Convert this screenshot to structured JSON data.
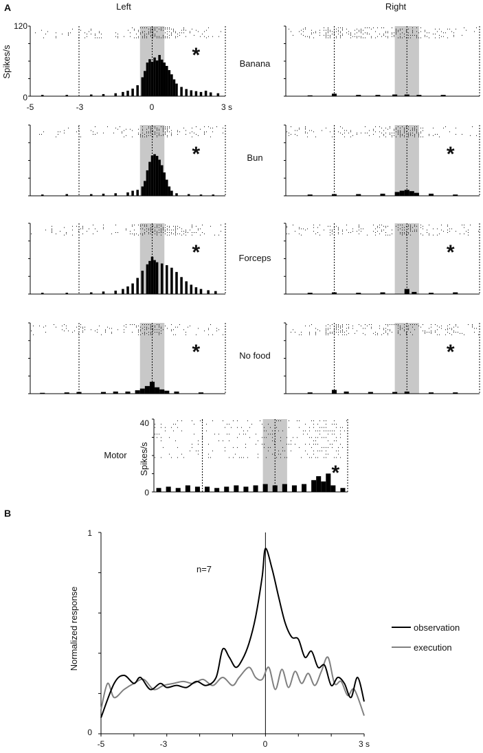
{
  "panel_a": {
    "letter": "A",
    "left_header": "Left",
    "right_header": "Right",
    "y_unit": "Spikes/s",
    "y_max_label": "120",
    "y_min_label": "0",
    "x_tick_labels": [
      "-5",
      "-3",
      "0",
      "3 s"
    ],
    "significance_mark": "*"
  },
  "panel_b": {
    "letter": "B"
  },
  "chart_data": [
    {
      "type": "bar",
      "id": "banana-left",
      "condition": "Banana",
      "side": "Left",
      "xlim": [
        -5,
        3
      ],
      "ylim": [
        0,
        120
      ],
      "significant": true,
      "bin_width": 0.1,
      "bins": [
        {
          "x": -4.5,
          "y": 3
        },
        {
          "x": -3.5,
          "y": 3
        },
        {
          "x": -2.5,
          "y": 4
        },
        {
          "x": -2.0,
          "y": 5
        },
        {
          "x": -1.5,
          "y": 7
        },
        {
          "x": -1.2,
          "y": 10
        },
        {
          "x": -1.0,
          "y": 13
        },
        {
          "x": -0.8,
          "y": 18
        },
        {
          "x": -0.6,
          "y": 26
        },
        {
          "x": -0.4,
          "y": 45
        },
        {
          "x": -0.3,
          "y": 60
        },
        {
          "x": -0.2,
          "y": 80
        },
        {
          "x": -0.1,
          "y": 88
        },
        {
          "x": 0.0,
          "y": 82
        },
        {
          "x": 0.1,
          "y": 92
        },
        {
          "x": 0.2,
          "y": 85
        },
        {
          "x": 0.3,
          "y": 98
        },
        {
          "x": 0.4,
          "y": 87
        },
        {
          "x": 0.5,
          "y": 80
        },
        {
          "x": 0.6,
          "y": 72
        },
        {
          "x": 0.7,
          "y": 62
        },
        {
          "x": 0.8,
          "y": 52
        },
        {
          "x": 0.9,
          "y": 40
        },
        {
          "x": 1.0,
          "y": 30
        },
        {
          "x": 1.2,
          "y": 22
        },
        {
          "x": 1.4,
          "y": 17
        },
        {
          "x": 1.6,
          "y": 14
        },
        {
          "x": 1.8,
          "y": 12
        },
        {
          "x": 2.0,
          "y": 10
        },
        {
          "x": 2.2,
          "y": 13
        },
        {
          "x": 2.4,
          "y": 9
        },
        {
          "x": 2.7,
          "y": 7
        }
      ]
    },
    {
      "type": "bar",
      "id": "banana-right",
      "condition": "Banana",
      "side": "Right",
      "xlim": [
        -5,
        3
      ],
      "ylim": [
        0,
        120
      ],
      "significant": false,
      "bin_width": 0.2,
      "bins": [
        {
          "x": -4.0,
          "y": 2
        },
        {
          "x": -3.0,
          "y": 6
        },
        {
          "x": -2.0,
          "y": 3
        },
        {
          "x": -1.2,
          "y": 3
        },
        {
          "x": -0.5,
          "y": 4
        },
        {
          "x": 0.0,
          "y": 4
        },
        {
          "x": 0.5,
          "y": 3
        },
        {
          "x": 1.5,
          "y": 3
        }
      ]
    },
    {
      "type": "bar",
      "id": "bun-left",
      "condition": "Bun",
      "side": "Left",
      "xlim": [
        -5,
        3
      ],
      "ylim": [
        0,
        120
      ],
      "significant": true,
      "bin_width": 0.1,
      "bins": [
        {
          "x": -4.5,
          "y": 3
        },
        {
          "x": -3.5,
          "y": 4
        },
        {
          "x": -2.5,
          "y": 4
        },
        {
          "x": -2.0,
          "y": 5
        },
        {
          "x": -1.5,
          "y": 6
        },
        {
          "x": -1.0,
          "y": 8
        },
        {
          "x": -0.8,
          "y": 12
        },
        {
          "x": -0.6,
          "y": 14
        },
        {
          "x": -0.4,
          "y": 22
        },
        {
          "x": -0.3,
          "y": 35
        },
        {
          "x": -0.2,
          "y": 60
        },
        {
          "x": -0.1,
          "y": 80
        },
        {
          "x": 0.0,
          "y": 95
        },
        {
          "x": 0.1,
          "y": 98
        },
        {
          "x": 0.2,
          "y": 94
        },
        {
          "x": 0.3,
          "y": 85
        },
        {
          "x": 0.4,
          "y": 72
        },
        {
          "x": 0.5,
          "y": 55
        },
        {
          "x": 0.6,
          "y": 38
        },
        {
          "x": 0.7,
          "y": 22
        },
        {
          "x": 0.8,
          "y": 12
        },
        {
          "x": 1.0,
          "y": 6
        },
        {
          "x": 1.5,
          "y": 4
        },
        {
          "x": 2.0,
          "y": 3
        },
        {
          "x": 2.5,
          "y": 3
        }
      ]
    },
    {
      "type": "bar",
      "id": "bun-right",
      "condition": "Bun",
      "side": "Right",
      "xlim": [
        -5,
        3
      ],
      "ylim": [
        0,
        120
      ],
      "significant": true,
      "bin_width": 0.2,
      "bins": [
        {
          "x": -4.0,
          "y": 3
        },
        {
          "x": -3.0,
          "y": 4
        },
        {
          "x": -2.0,
          "y": 4
        },
        {
          "x": -1.0,
          "y": 5
        },
        {
          "x": -0.4,
          "y": 9
        },
        {
          "x": -0.2,
          "y": 12
        },
        {
          "x": 0.0,
          "y": 14
        },
        {
          "x": 0.2,
          "y": 11
        },
        {
          "x": 0.4,
          "y": 7
        },
        {
          "x": 1.0,
          "y": 5
        },
        {
          "x": 2.0,
          "y": 3
        }
      ]
    },
    {
      "type": "bar",
      "id": "forceps-left",
      "condition": "Forceps",
      "side": "Left",
      "xlim": [
        -5,
        3
      ],
      "ylim": [
        0,
        120
      ],
      "significant": true,
      "bin_width": 0.1,
      "bins": [
        {
          "x": -4.5,
          "y": 3
        },
        {
          "x": -3.5,
          "y": 3
        },
        {
          "x": -2.5,
          "y": 4
        },
        {
          "x": -2.0,
          "y": 6
        },
        {
          "x": -1.5,
          "y": 8
        },
        {
          "x": -1.2,
          "y": 12
        },
        {
          "x": -1.0,
          "y": 18
        },
        {
          "x": -0.8,
          "y": 25
        },
        {
          "x": -0.6,
          "y": 38
        },
        {
          "x": -0.4,
          "y": 55
        },
        {
          "x": -0.2,
          "y": 70
        },
        {
          "x": -0.1,
          "y": 78
        },
        {
          "x": 0.0,
          "y": 88
        },
        {
          "x": 0.1,
          "y": 80
        },
        {
          "x": 0.2,
          "y": 75
        },
        {
          "x": 0.4,
          "y": 72
        },
        {
          "x": 0.6,
          "y": 68
        },
        {
          "x": 0.8,
          "y": 62
        },
        {
          "x": 1.0,
          "y": 52
        },
        {
          "x": 1.2,
          "y": 40
        },
        {
          "x": 1.4,
          "y": 30
        },
        {
          "x": 1.6,
          "y": 22
        },
        {
          "x": 1.8,
          "y": 16
        },
        {
          "x": 2.0,
          "y": 12
        },
        {
          "x": 2.3,
          "y": 9
        },
        {
          "x": 2.6,
          "y": 7
        }
      ]
    },
    {
      "type": "bar",
      "id": "forceps-right",
      "condition": "Forceps",
      "side": "Right",
      "xlim": [
        -5,
        3
      ],
      "ylim": [
        0,
        120
      ],
      "significant": true,
      "bin_width": 0.2,
      "bins": [
        {
          "x": -4.0,
          "y": 3
        },
        {
          "x": -3.0,
          "y": 4
        },
        {
          "x": -2.0,
          "y": 3
        },
        {
          "x": -1.0,
          "y": 4
        },
        {
          "x": 0.0,
          "y": 12
        },
        {
          "x": 0.3,
          "y": 5
        },
        {
          "x": 1.0,
          "y": 3
        },
        {
          "x": 2.0,
          "y": 4
        }
      ]
    },
    {
      "type": "bar",
      "id": "nofood-left",
      "condition": "No food",
      "side": "Left",
      "xlim": [
        -5,
        3
      ],
      "ylim": [
        0,
        120
      ],
      "significant": true,
      "bin_width": 0.2,
      "bins": [
        {
          "x": -4.5,
          "y": 2
        },
        {
          "x": -3.5,
          "y": 3
        },
        {
          "x": -3.0,
          "y": 4
        },
        {
          "x": -2.0,
          "y": 4
        },
        {
          "x": -1.5,
          "y": 5
        },
        {
          "x": -1.0,
          "y": 5
        },
        {
          "x": -0.6,
          "y": 8
        },
        {
          "x": -0.4,
          "y": 12
        },
        {
          "x": -0.2,
          "y": 18
        },
        {
          "x": 0.0,
          "y": 28
        },
        {
          "x": 0.2,
          "y": 15
        },
        {
          "x": 0.4,
          "y": 10
        },
        {
          "x": 0.6,
          "y": 7
        },
        {
          "x": 1.0,
          "y": 5
        },
        {
          "x": 2.0,
          "y": 3
        }
      ]
    },
    {
      "type": "bar",
      "id": "nofood-right",
      "condition": "No food",
      "side": "Right",
      "xlim": [
        -5,
        3
      ],
      "ylim": [
        0,
        120
      ],
      "significant": true,
      "bin_width": 0.2,
      "bins": [
        {
          "x": -4.0,
          "y": 3
        },
        {
          "x": -3.0,
          "y": 9
        },
        {
          "x": -2.5,
          "y": 5
        },
        {
          "x": -1.5,
          "y": 4
        },
        {
          "x": -0.5,
          "y": 4
        },
        {
          "x": 0.0,
          "y": 5
        },
        {
          "x": 1.0,
          "y": 3
        },
        {
          "x": 2.0,
          "y": 3
        }
      ]
    },
    {
      "type": "bar",
      "id": "motor",
      "condition": "Motor",
      "ylabel": "Spikes/s",
      "yticks": [
        "40",
        "0"
      ],
      "xlim": [
        -5,
        3
      ],
      "ylim": [
        0,
        40
      ],
      "significant": true,
      "bin_width": 0.2,
      "bins": [
        {
          "x": -4.8,
          "y": 3
        },
        {
          "x": -4.4,
          "y": 4
        },
        {
          "x": -4.0,
          "y": 3
        },
        {
          "x": -3.6,
          "y": 5
        },
        {
          "x": -3.2,
          "y": 4
        },
        {
          "x": -2.8,
          "y": 4
        },
        {
          "x": -2.4,
          "y": 3
        },
        {
          "x": -2.0,
          "y": 4
        },
        {
          "x": -1.6,
          "y": 5
        },
        {
          "x": -1.2,
          "y": 4
        },
        {
          "x": -0.8,
          "y": 5
        },
        {
          "x": -0.4,
          "y": 6
        },
        {
          "x": 0.0,
          "y": 5
        },
        {
          "x": 0.4,
          "y": 6
        },
        {
          "x": 0.8,
          "y": 5
        },
        {
          "x": 1.2,
          "y": 6
        },
        {
          "x": 1.6,
          "y": 9
        },
        {
          "x": 1.8,
          "y": 12
        },
        {
          "x": 2.0,
          "y": 8
        },
        {
          "x": 2.2,
          "y": 14
        },
        {
          "x": 2.4,
          "y": 5
        },
        {
          "x": 2.8,
          "y": 3
        }
      ]
    },
    {
      "type": "line",
      "id": "population",
      "ylabel": "Normalized response",
      "annotation": "n=7",
      "xticks": [
        "-5",
        "-3",
        "0",
        "3 s"
      ],
      "yticks": [
        "1",
        "0"
      ],
      "xlim": [
        -5,
        3
      ],
      "ylim": [
        0,
        1
      ],
      "legend_position": "right",
      "series": [
        {
          "name": "observation",
          "color": "#000000",
          "x": [
            -5,
            -4.6,
            -4.3,
            -4.0,
            -3.8,
            -3.5,
            -3.2,
            -3.0,
            -2.7,
            -2.4,
            -2.1,
            -1.8,
            -1.5,
            -1.3,
            -1.1,
            -0.9,
            -0.7,
            -0.5,
            -0.3,
            -0.1,
            0.0,
            0.2,
            0.4,
            0.6,
            0.8,
            1.0,
            1.2,
            1.4,
            1.6,
            1.8,
            2.0,
            2.2,
            2.4,
            2.6,
            2.8,
            3.0
          ],
          "y": [
            0.08,
            0.25,
            0.29,
            0.25,
            0.28,
            0.22,
            0.25,
            0.23,
            0.24,
            0.23,
            0.26,
            0.24,
            0.28,
            0.42,
            0.38,
            0.33,
            0.37,
            0.45,
            0.58,
            0.78,
            0.92,
            0.82,
            0.68,
            0.55,
            0.48,
            0.47,
            0.38,
            0.41,
            0.33,
            0.34,
            0.24,
            0.28,
            0.25,
            0.18,
            0.28,
            0.16
          ]
        },
        {
          "name": "execution",
          "color": "#7f7f7f",
          "x": [
            -5,
            -4.8,
            -4.6,
            -4.3,
            -4.0,
            -3.7,
            -3.4,
            -3.1,
            -2.8,
            -2.5,
            -2.2,
            -1.9,
            -1.6,
            -1.3,
            -1.0,
            -0.8,
            -0.5,
            -0.3,
            -0.1,
            0.1,
            0.3,
            0.5,
            0.7,
            0.9,
            1.1,
            1.3,
            1.5,
            1.7,
            1.9,
            2.1,
            2.3,
            2.5,
            2.7,
            3.0
          ],
          "y": [
            0.12,
            0.25,
            0.18,
            0.22,
            0.25,
            0.27,
            0.22,
            0.24,
            0.25,
            0.26,
            0.25,
            0.27,
            0.24,
            0.28,
            0.24,
            0.28,
            0.33,
            0.28,
            0.27,
            0.33,
            0.22,
            0.32,
            0.23,
            0.31,
            0.25,
            0.3,
            0.24,
            0.31,
            0.38,
            0.25,
            0.26,
            0.19,
            0.22,
            0.09
          ]
        }
      ]
    }
  ]
}
